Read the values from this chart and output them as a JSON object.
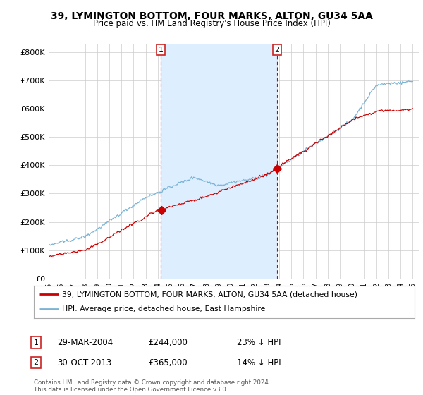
{
  "title": "39, LYMINGTON BOTTOM, FOUR MARKS, ALTON, GU34 5AA",
  "subtitle": "Price paid vs. HM Land Registry's House Price Index (HPI)",
  "ylabel_ticks": [
    "£0",
    "£100K",
    "£200K",
    "£300K",
    "£400K",
    "£500K",
    "£600K",
    "£700K",
    "£800K"
  ],
  "ytick_values": [
    0,
    100000,
    200000,
    300000,
    400000,
    500000,
    600000,
    700000,
    800000
  ],
  "ylim": [
    0,
    830000
  ],
  "xlim_start": 1995.0,
  "xlim_end": 2025.5,
  "hpi_color": "#7ab3d4",
  "hpi_fill_color": "#ddeeff",
  "price_color": "#cc0000",
  "sale1_x": 2004.24,
  "sale1_y": 244000,
  "sale1_label": "1",
  "sale2_x": 2013.83,
  "sale2_y": 365000,
  "sale2_label": "2",
  "legend_label1": "39, LYMINGTON BOTTOM, FOUR MARKS, ALTON, GU34 5AA (detached house)",
  "legend_label2": "HPI: Average price, detached house, East Hampshire",
  "annotation1_date": "29-MAR-2004",
  "annotation1_price": "£244,000",
  "annotation1_hpi": "23% ↓ HPI",
  "annotation2_date": "30-OCT-2013",
  "annotation2_price": "£365,000",
  "annotation2_hpi": "14% ↓ HPI",
  "footnote": "Contains HM Land Registry data © Crown copyright and database right 2024.\nThis data is licensed under the Open Government Licence v3.0.",
  "background_color": "#ffffff",
  "grid_color": "#cccccc"
}
